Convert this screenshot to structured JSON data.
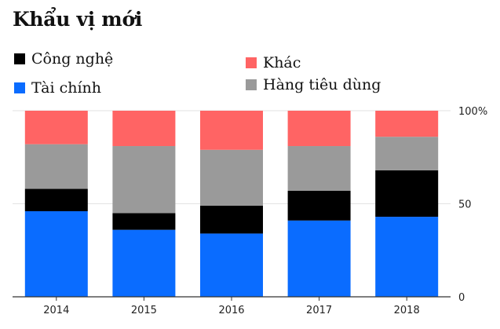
{
  "title": "Khẩu vị mới",
  "legend": [
    {
      "label": "Công nghệ",
      "color": "#000000"
    },
    {
      "label": "Tài chính",
      "color": "#0a6cff"
    },
    {
      "label": "Khác",
      "color": "#ff6464"
    },
    {
      "label": "Hàng tiêu dùng",
      "color": "#9a9a9a"
    }
  ],
  "chart_data": {
    "type": "bar",
    "stacked": true,
    "categories": [
      "2014",
      "2015",
      "2016",
      "2017",
      "2018"
    ],
    "series": [
      {
        "name": "Tài chính",
        "color": "#0a6cff",
        "values": [
          46,
          36,
          34,
          41,
          43
        ]
      },
      {
        "name": "Công nghệ",
        "color": "#000000",
        "values": [
          12,
          9,
          15,
          16,
          25
        ]
      },
      {
        "name": "Hàng tiêu dùng",
        "color": "#9a9a9a",
        "values": [
          24,
          36,
          30,
          24,
          18
        ]
      },
      {
        "name": "Khác",
        "color": "#ff6464",
        "values": [
          18,
          19,
          21,
          19,
          14
        ]
      }
    ],
    "ylim": [
      0,
      100
    ],
    "yticks": [
      "0",
      "50",
      "100%"
    ],
    "y_axis_side": "right",
    "grid": true,
    "legend_position": "top"
  }
}
